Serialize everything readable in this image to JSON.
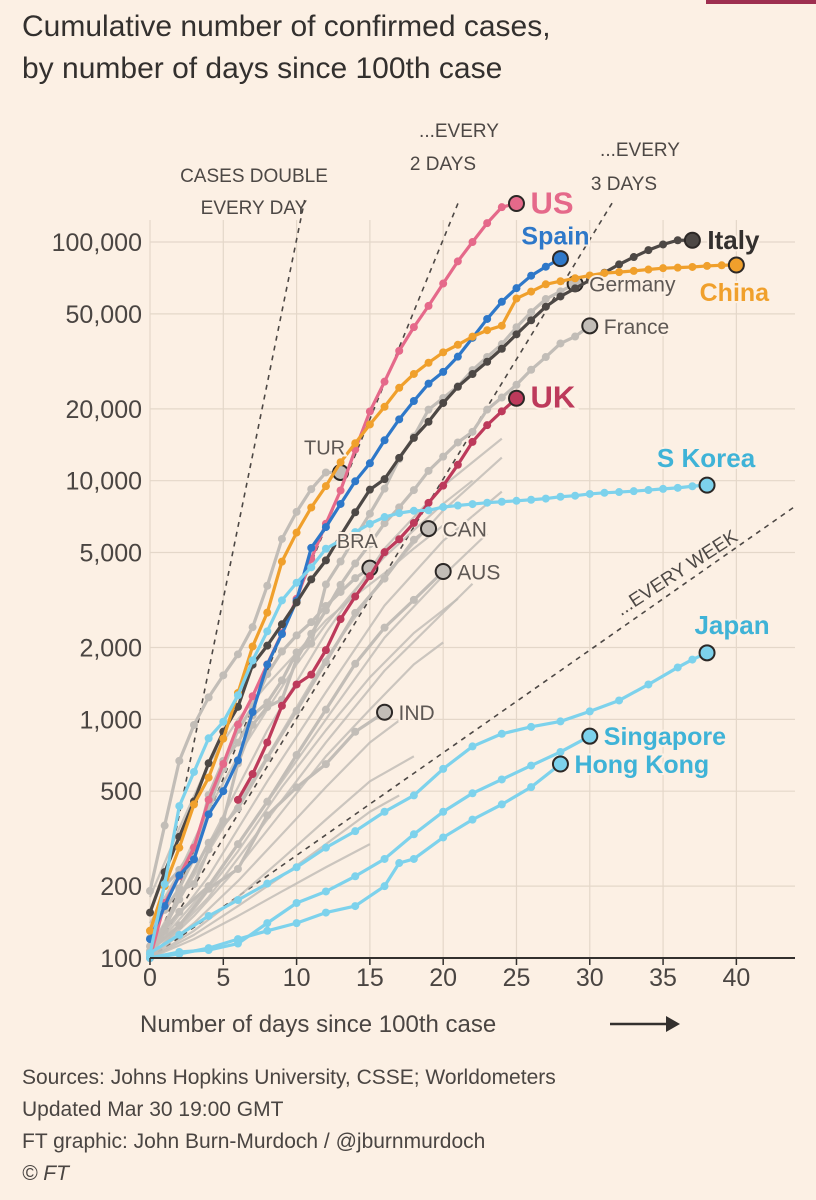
{
  "header": {
    "title_line1": "Cumulative number of confirmed cases,",
    "title_line2": "by number of days since 100th case"
  },
  "footer": {
    "sources": "Sources: Johns Hopkins University, CSSE; Worldometers",
    "updated": "Updated Mar 30 19:00 GMT",
    "credit": "FT graphic: John Burn-Murdoch / @jburnmurdoch",
    "copyright": "© FT"
  },
  "chart_data": {
    "type": "line",
    "xlabel": "Number of days since 100th case",
    "ylabel": "",
    "x_scale": "linear",
    "y_scale": "log",
    "xlim": [
      0,
      44
    ],
    "ylim": [
      100,
      150000
    ],
    "x_ticks": [
      0,
      5,
      10,
      15,
      20,
      25,
      30,
      35,
      40
    ],
    "y_ticks": [
      100,
      200,
      500,
      1000,
      2000,
      5000,
      10000,
      20000,
      50000,
      100000
    ],
    "y_tick_labels": [
      "100",
      "200",
      "500",
      "1,000",
      "2,000",
      "5,000",
      "10,000",
      "20,000",
      "50,000",
      "100,000"
    ],
    "grid": true,
    "guides": [
      {
        "label_lines": [
          "CASES DOUBLE",
          "EVERY DAY"
        ],
        "doubling_days": 1
      },
      {
        "label_lines": [
          "...EVERY",
          "2 DAYS"
        ],
        "doubling_days": 2
      },
      {
        "label_lines": [
          "...EVERY",
          "3 DAYS"
        ],
        "doubling_days": 3
      },
      {
        "label_lines": [
          "...EVERY WEEK"
        ],
        "doubling_days": 7
      }
    ],
    "colors": {
      "US": "#e5698a",
      "Spain": "#2e78c9",
      "Italy": "#4d4845",
      "China": "#f0a02c",
      "UK": "#bd3a5b",
      "Asia": "#7dd2ec",
      "Other": "#c2bdb7",
      "Guide": "#4d4845"
    },
    "series": [
      {
        "name": "US",
        "label": "US",
        "color": "#e5698a",
        "x": [
          0,
          1,
          2,
          3,
          4,
          5,
          6,
          7,
          8,
          9,
          10,
          11,
          12,
          13,
          14,
          15,
          16,
          17,
          18,
          19,
          20,
          21,
          22,
          23,
          24,
          25
        ],
        "y": [
          100,
          170,
          220,
          290,
          460,
          650,
          950,
          1250,
          1700,
          2300,
          3200,
          4700,
          6600,
          9100,
          13500,
          19500,
          26000,
          35000,
          44000,
          54000,
          67000,
          83000,
          100000,
          120000,
          140000,
          145000
        ]
      },
      {
        "name": "Spain",
        "label": "Spain",
        "color": "#2e78c9",
        "x": [
          0,
          1,
          2,
          3,
          4,
          5,
          6,
          7,
          8,
          9,
          10,
          11,
          12,
          13,
          14,
          15,
          16,
          17,
          18,
          19,
          20,
          21,
          22,
          23,
          24,
          25,
          26,
          27,
          28
        ],
        "y": [
          120,
          165,
          222,
          259,
          400,
          500,
          673,
          1073,
          1695,
          2277,
          3146,
          5232,
          6391,
          7988,
          9942,
          11826,
          14769,
          18077,
          21571,
          25496,
          28572,
          33089,
          39673,
          47610,
          56188,
          64059,
          72248,
          78797,
          85195
        ]
      },
      {
        "name": "Italy",
        "label": "Italy",
        "color": "#4d4845",
        "x": [
          0,
          1,
          2,
          3,
          4,
          5,
          6,
          7,
          8,
          9,
          10,
          11,
          12,
          13,
          14,
          15,
          16,
          17,
          18,
          19,
          20,
          21,
          22,
          23,
          24,
          25,
          26,
          27,
          28,
          29,
          30,
          31,
          32,
          33,
          34,
          35,
          36,
          37
        ],
        "y": [
          155,
          229,
          322,
          453,
          655,
          888,
          1128,
          1694,
          2036,
          2502,
          3089,
          3858,
          4636,
          5883,
          7375,
          9172,
          10149,
          12462,
          15113,
          17660,
          21157,
          24747,
          27980,
          31506,
          35713,
          41035,
          47021,
          53578,
          59138,
          63927,
          69176,
          74386,
          80589,
          86498,
          92472,
          97689,
          101739,
          101739
        ]
      },
      {
        "name": "China",
        "label": "China",
        "color": "#f0a02c",
        "x": [
          0,
          1,
          2,
          3,
          4,
          5,
          6,
          7,
          8,
          9,
          10,
          11,
          12,
          13,
          14,
          15,
          16,
          17,
          18,
          19,
          20,
          21,
          22,
          23,
          24,
          25,
          26,
          27,
          28,
          29,
          30,
          31,
          32,
          33,
          34,
          35,
          36,
          37,
          38,
          39,
          40
        ],
        "y": [
          130,
          200,
          290,
          440,
          570,
          830,
          1290,
          2020,
          2800,
          4580,
          6060,
          7720,
          9490,
          11950,
          14350,
          17200,
          20400,
          24500,
          28000,
          31200,
          34500,
          37100,
          40150,
          42700,
          44600,
          58000,
          62000,
          66500,
          68500,
          70500,
          72400,
          74100,
          74800,
          75700,
          76700,
          77700,
          78100,
          78600,
          79400,
          79900,
          80100
        ]
      },
      {
        "name": "UK",
        "label": "UK",
        "color": "#bd3a5b",
        "x": [
          6,
          7,
          8,
          9,
          10,
          11,
          12,
          13,
          14,
          15,
          16,
          17,
          18,
          19,
          20,
          21,
          22,
          23,
          24,
          25
        ],
        "y": [
          460,
          590,
          800,
          1140,
          1400,
          1540,
          1950,
          2630,
          3270,
          3980,
          5018,
          5683,
          6650,
          8077,
          9529,
          11658,
          14543,
          17089,
          19522,
          22141
        ]
      },
      {
        "name": "Germany",
        "label": "Germany",
        "color": "#c2bdb7",
        "x": [
          0,
          1,
          2,
          3,
          4,
          5,
          6,
          7,
          8,
          9,
          10,
          11,
          12,
          13,
          14,
          15,
          16,
          17,
          18,
          19,
          20,
          21,
          22,
          23,
          24,
          25,
          26,
          27,
          28,
          29
        ],
        "y": [
          130,
          159,
          196,
          262,
          482,
          670,
          799,
          1040,
          1176,
          1457,
          1908,
          2078,
          3675,
          4585,
          5795,
          7272,
          9257,
          12327,
          15320,
          19848,
          22213,
          24873,
          29056,
          32986,
          37323,
          43938,
          50871,
          57695,
          62095,
          66885
        ]
      },
      {
        "name": "France",
        "label": "France",
        "color": "#c2bdb7",
        "x": [
          0,
          1,
          2,
          3,
          4,
          5,
          6,
          7,
          8,
          9,
          10,
          11,
          12,
          13,
          14,
          15,
          16,
          17,
          18,
          19,
          20,
          21,
          22,
          23,
          24,
          25,
          26,
          27,
          28,
          29,
          30
        ],
        "y": [
          100,
          130,
          191,
          204,
          285,
          377,
          653,
          949,
          1126,
          1209,
          1784,
          2284,
          2860,
          3661,
          4499,
          5423,
          6633,
          7730,
          9134,
          10995,
          12612,
          14459,
          16018,
          19856,
          22304,
          25233,
          29155,
          32964,
          37575,
          40174,
          44550
        ]
      },
      {
        "name": "S Korea",
        "label": "S Korea",
        "color": "#7dd2ec",
        "x": [
          0,
          1,
          2,
          3,
          4,
          5,
          6,
          7,
          8,
          9,
          10,
          11,
          12,
          13,
          14,
          15,
          16,
          17,
          18,
          19,
          20,
          21,
          22,
          23,
          24,
          25,
          26,
          27,
          28,
          29,
          30,
          31,
          32,
          33,
          34,
          35,
          36,
          37,
          38
        ],
        "y": [
          104,
          204,
          433,
          602,
          833,
          977,
          1261,
          1766,
          2337,
          3150,
          3736,
          4335,
          5186,
          5621,
          6088,
          6593,
          7041,
          7313,
          7478,
          7513,
          7755,
          7869,
          7979,
          8086,
          8162,
          8236,
          8320,
          8413,
          8565,
          8652,
          8799,
          8897,
          8961,
          9037,
          9137,
          9241,
          9332,
          9478,
          9583
        ]
      },
      {
        "name": "Japan",
        "label": "Japan",
        "color": "#7dd2ec",
        "x": [
          0,
          2,
          4,
          6,
          8,
          10,
          12,
          14,
          16,
          18,
          20,
          22,
          24,
          26,
          28,
          30,
          32,
          34,
          36,
          37,
          38
        ],
        "y": [
          105,
          125,
          150,
          175,
          205,
          240,
          290,
          340,
          410,
          480,
          620,
          770,
          870,
          930,
          980,
          1080,
          1200,
          1400,
          1650,
          1780,
          1900
        ]
      },
      {
        "name": "Singapore",
        "label": "Singapore",
        "color": "#7dd2ec",
        "x": [
          0,
          2,
          4,
          6,
          8,
          10,
          12,
          14,
          16,
          18,
          20,
          22,
          24,
          26,
          28,
          30
        ],
        "y": [
          100,
          106,
          108,
          115,
          140,
          170,
          190,
          220,
          260,
          330,
          410,
          490,
          560,
          640,
          730,
          850
        ]
      },
      {
        "name": "Hong Kong",
        "label": "Hong Kong",
        "color": "#7dd2ec",
        "x": [
          0,
          2,
          4,
          6,
          8,
          10,
          12,
          14,
          16,
          17,
          18,
          20,
          22,
          24,
          26,
          28
        ],
        "y": [
          100,
          104,
          110,
          120,
          130,
          140,
          155,
          165,
          200,
          250,
          260,
          320,
          380,
          440,
          520,
          650
        ]
      },
      {
        "name": "Turkey",
        "label": "TUR",
        "color": "#c2bdb7",
        "x": [
          0,
          1,
          2,
          3,
          4,
          5,
          6,
          7,
          8,
          9,
          10,
          11,
          12,
          13
        ],
        "y": [
          191,
          359,
          670,
          947,
          1236,
          1529,
          1872,
          2433,
          3629,
          5698,
          7402,
          9217,
          10827,
          10827
        ]
      },
      {
        "name": "Brazil",
        "label": "BRA",
        "color": "#c2bdb7",
        "x": [
          0,
          1,
          2,
          3,
          4,
          5,
          6,
          7,
          8,
          9,
          10,
          11,
          12,
          13,
          14,
          15
        ],
        "y": [
          121,
          200,
          234,
          291,
          428,
          621,
          904,
          1128,
          1546,
          1924,
          2247,
          2554,
          2985,
          3417,
          3904,
          4300
        ]
      },
      {
        "name": "Canada",
        "label": "CAN",
        "color": "#c2bdb7",
        "x": [
          0,
          2,
          4,
          6,
          8,
          10,
          12,
          14,
          16,
          18,
          19
        ],
        "y": [
          103,
          176,
          304,
          424,
          690,
          1087,
          1739,
          2792,
          3888,
          5655,
          6300
        ]
      },
      {
        "name": "Australia",
        "label": "AUS",
        "color": "#c2bdb7",
        "x": [
          0,
          2,
          4,
          6,
          8,
          10,
          12,
          14,
          16,
          18,
          20
        ],
        "y": [
          112,
          156,
          200,
          300,
          452,
          709,
          1098,
          1709,
          2423,
          3166,
          4163
        ]
      },
      {
        "name": "India",
        "label": "IND",
        "color": "#c2bdb7",
        "x": [
          0,
          2,
          4,
          6,
          8,
          10,
          12,
          14,
          16
        ],
        "y": [
          107,
          137,
          195,
          236,
          396,
          519,
          649,
          887,
          1071
        ]
      }
    ],
    "background_series": [
      {
        "x": [
          0,
          4,
          8,
          12,
          16,
          20,
          24
        ],
        "y": [
          110,
          300,
          900,
          2300,
          5200,
          9500,
          15000
        ]
      },
      {
        "x": [
          0,
          4,
          8,
          12,
          16,
          20,
          24
        ],
        "y": [
          110,
          280,
          700,
          1800,
          4000,
          7500,
          12500
        ]
      },
      {
        "x": [
          0,
          4,
          8,
          12,
          16,
          20,
          24
        ],
        "y": [
          105,
          220,
          550,
          1300,
          3000,
          5600,
          9000
        ]
      },
      {
        "x": [
          0,
          4,
          8,
          12,
          16,
          20,
          23
        ],
        "y": [
          105,
          200,
          450,
          1000,
          2200,
          4000,
          6000
        ]
      },
      {
        "x": [
          0,
          4,
          8,
          12,
          16,
          20,
          22
        ],
        "y": [
          100,
          180,
          380,
          800,
          1600,
          2800,
          3700
        ]
      },
      {
        "x": [
          0,
          3,
          6,
          9,
          12,
          15,
          18,
          21
        ],
        "y": [
          100,
          160,
          280,
          520,
          900,
          1500,
          2300,
          3200
        ]
      },
      {
        "x": [
          0,
          3,
          6,
          9,
          12,
          15,
          18,
          20
        ],
        "y": [
          100,
          150,
          240,
          410,
          700,
          1100,
          1700,
          2100
        ]
      },
      {
        "x": [
          0,
          3,
          6,
          9,
          12,
          15,
          18
        ],
        "y": [
          100,
          140,
          210,
          330,
          520,
          800,
          1100
        ]
      },
      {
        "x": [
          0,
          3,
          6,
          9,
          12,
          15,
          18
        ],
        "y": [
          100,
          130,
          180,
          260,
          380,
          550,
          700
        ]
      },
      {
        "x": [
          0,
          3,
          6,
          9,
          12,
          15,
          17
        ],
        "y": [
          100,
          125,
          165,
          220,
          300,
          410,
          480
        ]
      },
      {
        "x": [
          0,
          3,
          6,
          9,
          12,
          15
        ],
        "y": [
          100,
          120,
          150,
          190,
          240,
          300
        ]
      },
      {
        "x": [
          0,
          2,
          4,
          6,
          8,
          10,
          12,
          14,
          16,
          18,
          20,
          22
        ],
        "y": [
          140,
          230,
          420,
          700,
          1100,
          1700,
          2500,
          3500,
          4800,
          6200,
          8000,
          10000
        ]
      },
      {
        "x": [
          0,
          2,
          4,
          6,
          8,
          10,
          12,
          14,
          16,
          18,
          20
        ],
        "y": [
          180,
          350,
          650,
          1000,
          1400,
          1900,
          2600,
          3300,
          4100,
          5200,
          6500
        ]
      }
    ]
  }
}
